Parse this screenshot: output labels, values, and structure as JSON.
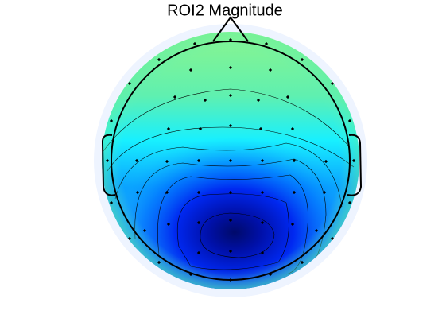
{
  "title": "ROI2 Magnitude"
}
